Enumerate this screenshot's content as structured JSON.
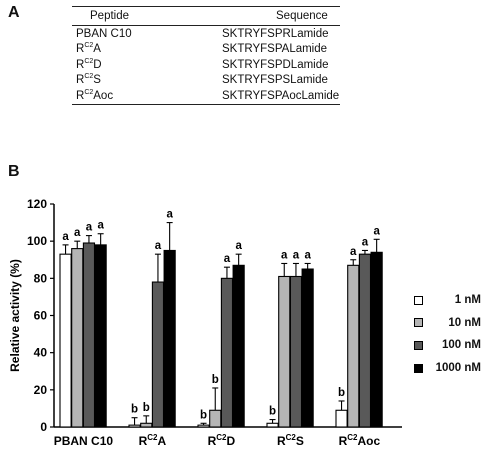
{
  "panel_a": {
    "letter": "A",
    "headers": [
      "Peptide",
      "Sequence"
    ],
    "rows": [
      {
        "name_base": "PBAN C10",
        "name_sup": "",
        "name_sub": "",
        "sequence": "SKTRYFSPRLamide"
      },
      {
        "name_base": "R",
        "name_sup": "C2",
        "name_sub": "A",
        "sequence": "SKTRYFSPALamide"
      },
      {
        "name_base": "R",
        "name_sup": "C2",
        "name_sub": "D",
        "sequence": "SKTRYFSPDLamide"
      },
      {
        "name_base": "R",
        "name_sup": "C2",
        "name_sub": "S",
        "sequence": "SKTRYFSPSLamide"
      },
      {
        "name_base": "R",
        "name_sup": "C2",
        "name_sub": "Aoc",
        "sequence": "SKTRYFSPAocLamide"
      }
    ]
  },
  "panel_b": {
    "letter": "B"
  },
  "chart_data": {
    "type": "bar",
    "ylabel": "Relative activity (%)",
    "xlabel": "",
    "ylim": [
      0,
      120
    ],
    "yticks": [
      0,
      20,
      40,
      60,
      80,
      100,
      120
    ],
    "categories": [
      {
        "base": "PBAN C10",
        "sup": ""
      },
      {
        "base": "R",
        "sup": "C2",
        "suffix": "A"
      },
      {
        "base": "R",
        "sup": "C2",
        "suffix": "D"
      },
      {
        "base": "R",
        "sup": "C2",
        "suffix": "S"
      },
      {
        "base": "R",
        "sup": "C2",
        "suffix": "Aoc"
      }
    ],
    "legend_position": "right",
    "series": [
      {
        "name": "1 nM",
        "color": "#ffffff",
        "values": [
          93,
          1,
          1,
          2,
          9
        ],
        "errors": [
          5,
          4,
          1,
          2,
          5
        ],
        "labels": [
          "a",
          "b",
          "b",
          "b",
          "b"
        ]
      },
      {
        "name": "10 nM",
        "color": "#b5b5b5",
        "values": [
          96,
          2,
          9,
          81,
          87
        ],
        "errors": [
          4,
          4,
          12,
          7,
          3
        ],
        "labels": [
          "a",
          "b",
          "b",
          "a",
          "a"
        ]
      },
      {
        "name": "100 nM",
        "color": "#595959",
        "values": [
          99,
          78,
          80,
          81,
          93
        ],
        "errors": [
          4,
          15,
          6,
          7,
          2
        ],
        "labels": [
          "a",
          "a",
          "a",
          "a",
          "a"
        ]
      },
      {
        "name": "1000 nM",
        "color": "#000000",
        "values": [
          98,
          95,
          87,
          85,
          94
        ],
        "errors": [
          6,
          15,
          6,
          3,
          7
        ],
        "labels": [
          "a",
          "a",
          "a",
          "a",
          "a"
        ]
      }
    ]
  }
}
